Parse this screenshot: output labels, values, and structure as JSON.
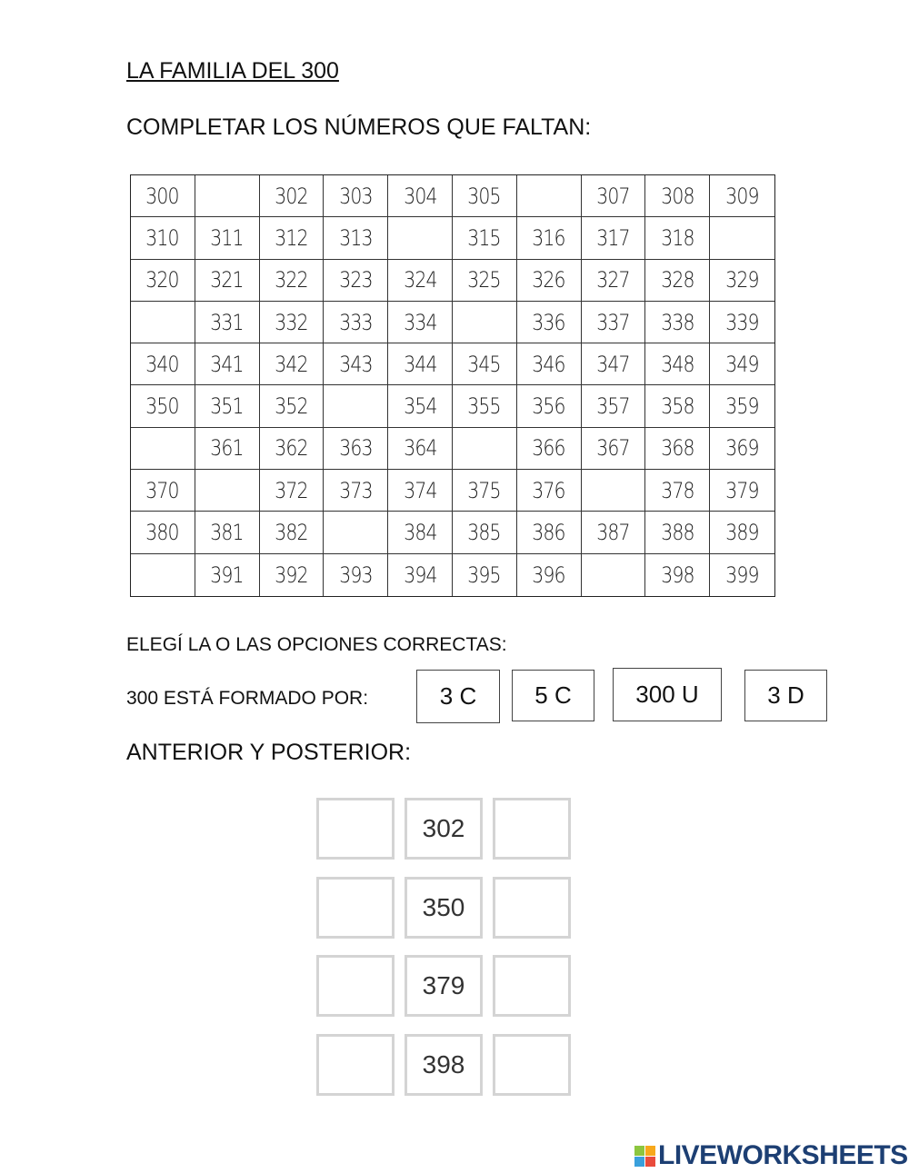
{
  "title": "LA FAMILIA DEL 300",
  "instruction_complete": "COMPLETAR LOS NÚMEROS QUE FALTAN:",
  "grid": [
    [
      "300",
      "",
      "302",
      "303",
      "304",
      "305",
      "",
      "307",
      "308",
      "309"
    ],
    [
      "310",
      "311",
      "312",
      "313",
      "",
      "315",
      "316",
      "317",
      "318",
      ""
    ],
    [
      "320",
      "321",
      "322",
      "323",
      "324",
      "325",
      "326",
      "327",
      "328",
      "329"
    ],
    [
      "",
      "331",
      "332",
      "333",
      "334",
      "",
      "336",
      "337",
      "338",
      "339"
    ],
    [
      "340",
      "341",
      "342",
      "343",
      "344",
      "345",
      "346",
      "347",
      "348",
      "349"
    ],
    [
      "350",
      "351",
      "352",
      "",
      "354",
      "355",
      "356",
      "357",
      "358",
      "359"
    ],
    [
      "",
      "361",
      "362",
      "363",
      "364",
      "",
      "366",
      "367",
      "368",
      "369"
    ],
    [
      "370",
      "",
      "372",
      "373",
      "374",
      "375",
      "376",
      "",
      "378",
      "379"
    ],
    [
      "380",
      "381",
      "382",
      "",
      "384",
      "385",
      "386",
      "387",
      "388",
      "389"
    ],
    [
      "",
      "391",
      "392",
      "393",
      "394",
      "395",
      "396",
      "",
      "398",
      "399"
    ]
  ],
  "instruction_choose": "ELEGÍ LA O LAS OPCIONES CORRECTAS:",
  "question_300": "300 ESTÁ FORMADO POR:",
  "options": [
    "3 C",
    "5 C",
    "300 U",
    "3 D"
  ],
  "instruction_neighbors": "ANTERIOR Y POSTERIOR:",
  "neighbors": [
    "302",
    "350",
    "379",
    "398"
  ],
  "logo": {
    "text": "LIVEWORKSHEETS",
    "letters": [
      "L",
      "I",
      "V",
      "E"
    ],
    "colors": [
      "#8cc63f",
      "#f7a81b",
      "#3aa0dc",
      "#e94b3c"
    ],
    "text_color": "#1d3f73"
  }
}
